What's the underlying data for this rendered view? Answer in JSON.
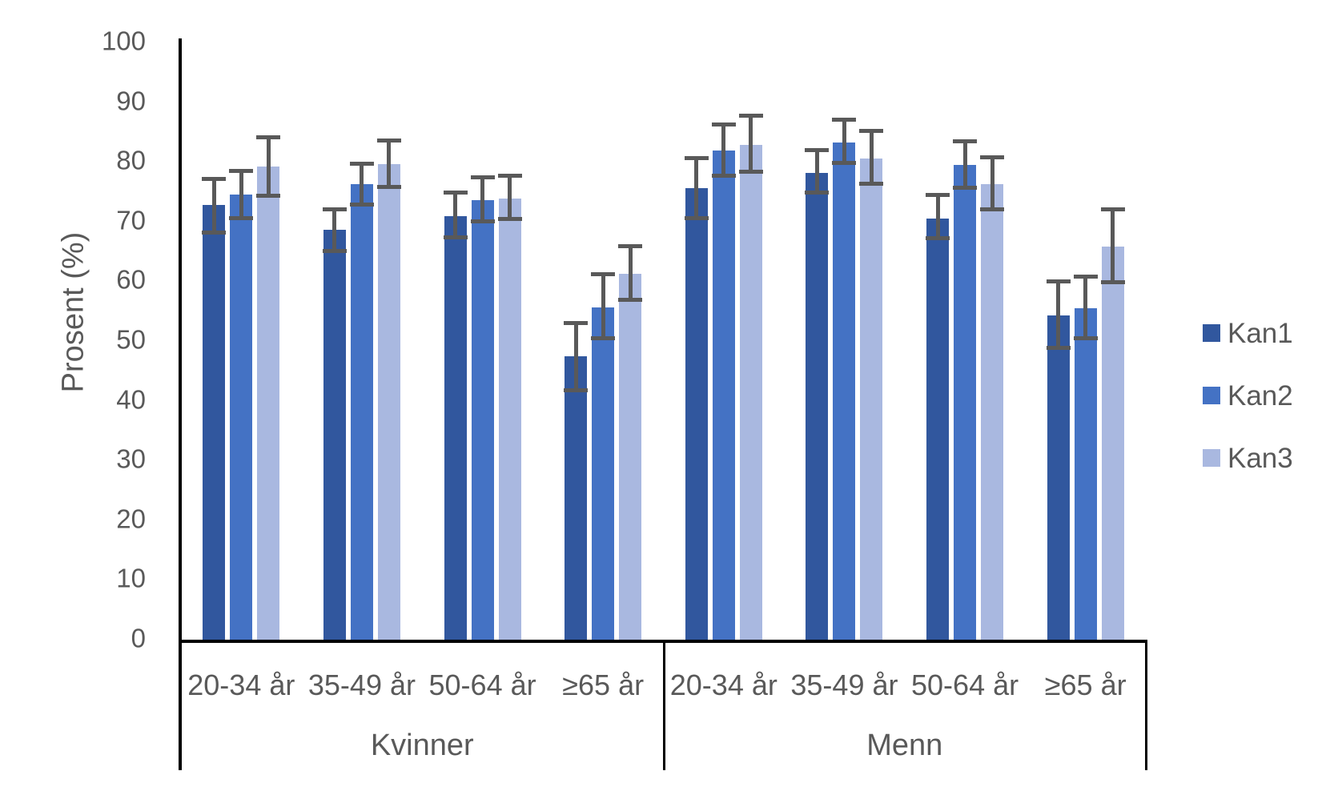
{
  "chart_data": {
    "type": "bar",
    "title": "",
    "ylabel": "Prosent (%)",
    "xlabel": "",
    "ylim": [
      0,
      100
    ],
    "yticks": [
      100,
      90,
      80,
      70,
      60,
      50,
      40,
      30,
      20,
      10,
      0
    ],
    "grid": false,
    "legend_position": "right",
    "group_labels": [
      "Kvinner",
      "Menn"
    ],
    "categories": [
      "20-34 år",
      "35-49 år",
      "50-64 år",
      "≥65 år"
    ],
    "series": [
      {
        "name": "Kan1",
        "color": "#31579E",
        "values": [
          [
            72.5,
            68.4,
            70.7,
            47.2
          ],
          [
            75.4,
            77.9,
            70.3,
            54.0
          ]
        ],
        "ci_low": [
          [
            67.5,
            64.5,
            66.8,
            41.2
          ],
          [
            70.0,
            74.2,
            66.6,
            48.2
          ]
        ],
        "ci_high": [
          [
            77.2,
            72.1,
            75.0,
            53.1
          ],
          [
            80.7,
            82.0,
            74.5,
            60.1
          ]
        ]
      },
      {
        "name": "Kan2",
        "color": "#4472C4",
        "values": [
          [
            74.3,
            76.0,
            73.3,
            55.3
          ],
          [
            81.6,
            83.0,
            79.2,
            55.2
          ]
        ],
        "ci_low": [
          [
            70.0,
            72.2,
            69.4,
            49.8
          ],
          [
            77.1,
            79.2,
            75.1,
            49.8
          ]
        ],
        "ci_high": [
          [
            78.6,
            79.8,
            77.5,
            61.2
          ],
          [
            86.3,
            87.1,
            83.5,
            60.9
          ]
        ]
      },
      {
        "name": "Kan3",
        "color": "#A9B8E0",
        "values": [
          [
            78.9,
            79.4,
            73.6,
            61.0
          ],
          [
            82.6,
            80.3,
            76.0,
            65.5
          ]
        ],
        "ci_low": [
          [
            73.7,
            75.2,
            69.8,
            56.3
          ],
          [
            77.7,
            75.7,
            71.4,
            59.2
          ]
        ],
        "ci_high": [
          [
            84.2,
            83.7,
            77.8,
            66.0
          ],
          [
            87.8,
            85.2,
            80.8,
            72.1
          ]
        ]
      }
    ],
    "error_bar_color": "#595959",
    "text_color": "#595959",
    "axis_color": "#000000"
  }
}
